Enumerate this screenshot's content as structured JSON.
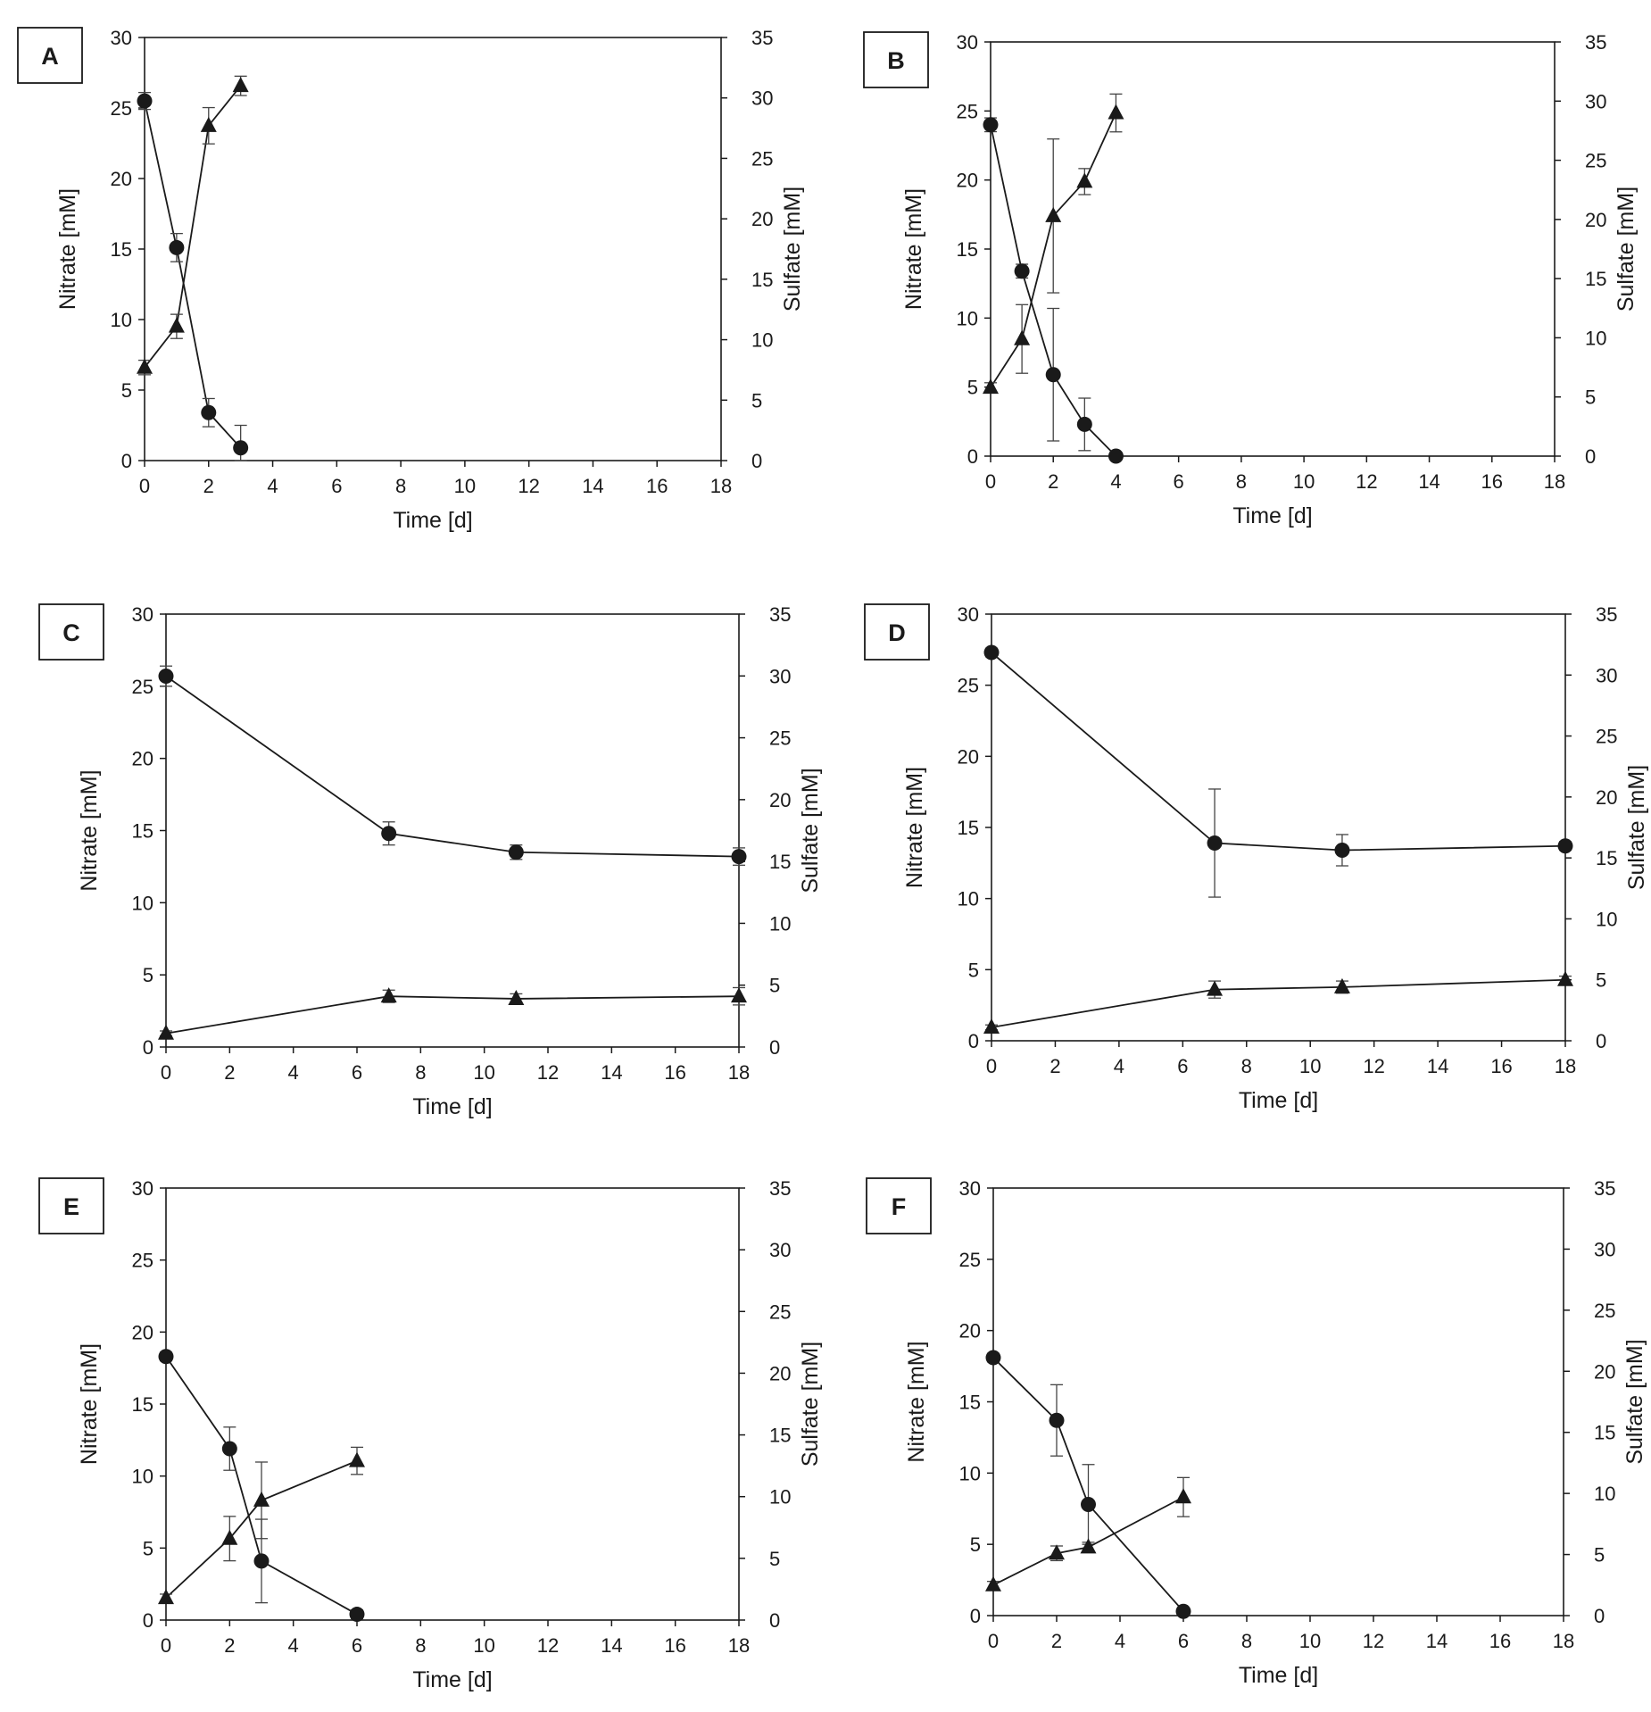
{
  "chart_data": [
    {
      "panel": "A",
      "type": "line",
      "xlabel": "Time [d]",
      "ylabel": "Nitrate [mM]",
      "y2label": "Sulfate [mM]",
      "xlim": [
        0,
        18
      ],
      "ylim": [
        0,
        30
      ],
      "y2lim": [
        0,
        35
      ],
      "xticks": [
        "0",
        "2",
        "4",
        "6",
        "8",
        "10",
        "12",
        "14",
        "16",
        "18"
      ],
      "yticks": [
        "0",
        "5",
        "10",
        "15",
        "20",
        "25",
        "30"
      ],
      "y2ticks": [
        "0",
        "5",
        "10",
        "15",
        "20",
        "25",
        "30",
        "35"
      ],
      "series": [
        {
          "name": "Nitrate",
          "marker": "circle",
          "axis": "left",
          "x": [
            0,
            1,
            2,
            3
          ],
          "values": [
            25.5,
            15.1,
            3.4,
            0.9
          ],
          "err": [
            0.6,
            1.0,
            1.0,
            1.6
          ]
        },
        {
          "name": "Sulfate",
          "marker": "triangle",
          "axis": "right",
          "x": [
            0,
            1,
            2,
            3
          ],
          "values": [
            7.7,
            11.1,
            27.7,
            31.0
          ],
          "err": [
            0.6,
            1.0,
            1.5,
            0.8
          ]
        }
      ]
    },
    {
      "panel": "B",
      "type": "line",
      "xlabel": "Time [d]",
      "ylabel": "Nitrate [mM]",
      "y2label": "Sulfate [mM]",
      "xlim": [
        0,
        18
      ],
      "ylim": [
        0,
        30
      ],
      "y2lim": [
        0,
        35
      ],
      "xticks": [
        "0",
        "2",
        "4",
        "6",
        "8",
        "10",
        "12",
        "14",
        "16",
        "18"
      ],
      "yticks": [
        "0",
        "5",
        "10",
        "15",
        "20",
        "25",
        "30"
      ],
      "y2ticks": [
        "0",
        "5",
        "10",
        "15",
        "20",
        "25",
        "30",
        "35"
      ],
      "series": [
        {
          "name": "Nitrate",
          "marker": "circle",
          "axis": "left",
          "x": [
            0,
            1,
            2,
            3,
            4
          ],
          "values": [
            24.0,
            13.4,
            5.9,
            2.3,
            0.0
          ],
          "err": [
            0.5,
            0.5,
            4.8,
            1.9,
            0.2
          ]
        },
        {
          "name": "Sulfate",
          "marker": "triangle",
          "axis": "right",
          "x": [
            0,
            1,
            2,
            3,
            4
          ],
          "values": [
            5.8,
            9.9,
            20.3,
            23.2,
            29.0
          ],
          "err": [
            0.4,
            2.9,
            6.5,
            1.1,
            1.6
          ]
        }
      ]
    },
    {
      "panel": "C",
      "type": "line",
      "xlabel": "Time [d]",
      "ylabel": "Nitrate [mM]",
      "y2label": "Sulfate [mM]",
      "xlim": [
        0,
        18
      ],
      "ylim": [
        0,
        30
      ],
      "y2lim": [
        0,
        35
      ],
      "xticks": [
        "0",
        "2",
        "4",
        "6",
        "8",
        "10",
        "12",
        "14",
        "16",
        "18"
      ],
      "yticks": [
        "0",
        "5",
        "10",
        "15",
        "20",
        "25",
        "30"
      ],
      "y2ticks": [
        "0",
        "5",
        "10",
        "15",
        "20",
        "25",
        "30",
        "35"
      ],
      "series": [
        {
          "name": "Nitrate",
          "marker": "circle",
          "axis": "left",
          "x": [
            0,
            7,
            11,
            18
          ],
          "values": [
            25.7,
            14.8,
            13.5,
            13.2
          ],
          "err": [
            0.7,
            0.8,
            0.5,
            0.6
          ]
        },
        {
          "name": "Sulfate",
          "marker": "triangle",
          "axis": "right",
          "x": [
            0,
            7,
            11,
            18
          ],
          "values": [
            1.1,
            4.1,
            3.9,
            4.1
          ],
          "err": [
            0.2,
            0.5,
            0.4,
            0.7
          ]
        }
      ]
    },
    {
      "panel": "D",
      "type": "line",
      "xlabel": "Time [d]",
      "ylabel": "Nitrate [mM]",
      "y2label": "Sulfate [mM]",
      "xlim": [
        0,
        18
      ],
      "ylim": [
        0,
        30
      ],
      "y2lim": [
        0,
        35
      ],
      "xticks": [
        "0",
        "2",
        "4",
        "6",
        "8",
        "10",
        "12",
        "14",
        "16",
        "18"
      ],
      "yticks": [
        "0",
        "5",
        "10",
        "15",
        "20",
        "25",
        "30"
      ],
      "y2ticks": [
        "0",
        "5",
        "10",
        "15",
        "20",
        "25",
        "30",
        "35"
      ],
      "series": [
        {
          "name": "Nitrate",
          "marker": "circle",
          "axis": "left",
          "x": [
            0,
            7,
            11,
            18
          ],
          "values": [
            27.3,
            13.9,
            13.4,
            13.7
          ],
          "err": [
            0.3,
            3.8,
            1.1,
            0.3
          ]
        },
        {
          "name": "Sulfate",
          "marker": "triangle",
          "axis": "right",
          "x": [
            0,
            7,
            11,
            18
          ],
          "values": [
            1.1,
            4.2,
            4.4,
            5.0
          ],
          "err": [
            0.2,
            0.7,
            0.5,
            0.3
          ]
        }
      ]
    },
    {
      "panel": "E",
      "type": "line",
      "xlabel": "Time [d]",
      "ylabel": "Nitrate [mM]",
      "y2label": "Sulfate [mM]",
      "xlim": [
        0,
        18
      ],
      "ylim": [
        0,
        30
      ],
      "y2lim": [
        0,
        35
      ],
      "xticks": [
        "0",
        "2",
        "4",
        "6",
        "8",
        "10",
        "12",
        "14",
        "16",
        "18"
      ],
      "yticks": [
        "0",
        "5",
        "10",
        "15",
        "20",
        "25",
        "30"
      ],
      "y2ticks": [
        "0",
        "5",
        "10",
        "15",
        "20",
        "25",
        "30",
        "35"
      ],
      "series": [
        {
          "name": "Nitrate",
          "marker": "circle",
          "axis": "left",
          "x": [
            0,
            2,
            3,
            6
          ],
          "values": [
            18.3,
            11.9,
            4.1,
            0.4
          ],
          "err": [
            0.3,
            1.5,
            2.9,
            0.3
          ]
        },
        {
          "name": "Sulfate",
          "marker": "triangle",
          "axis": "right",
          "x": [
            0,
            2,
            3,
            6
          ],
          "values": [
            1.8,
            6.6,
            9.7,
            12.9
          ],
          "err": [
            0.3,
            1.8,
            3.1,
            1.1
          ]
        }
      ]
    },
    {
      "panel": "F",
      "type": "line",
      "xlabel": "Time [d]",
      "ylabel": "Nitrate [mM]",
      "y2label": "Sulfate [mM]",
      "xlim": [
        0,
        18
      ],
      "ylim": [
        0,
        30
      ],
      "y2lim": [
        0,
        35
      ],
      "xticks": [
        "0",
        "2",
        "4",
        "6",
        "8",
        "10",
        "12",
        "14",
        "16",
        "18"
      ],
      "yticks": [
        "0",
        "5",
        "10",
        "15",
        "20",
        "25",
        "30"
      ],
      "y2ticks": [
        "0",
        "5",
        "10",
        "15",
        "20",
        "25",
        "30",
        "35"
      ],
      "series": [
        {
          "name": "Nitrate",
          "marker": "circle",
          "axis": "left",
          "x": [
            0,
            2,
            3,
            6
          ],
          "values": [
            18.1,
            13.7,
            7.8,
            0.3
          ],
          "err": [
            0.3,
            2.5,
            2.8,
            0.2
          ]
        },
        {
          "name": "Sulfate",
          "marker": "triangle",
          "axis": "right",
          "x": [
            0,
            2,
            3,
            6
          ],
          "values": [
            2.5,
            5.1,
            5.6,
            9.7
          ],
          "err": [
            0.3,
            0.6,
            0.4,
            1.6
          ]
        }
      ]
    }
  ]
}
